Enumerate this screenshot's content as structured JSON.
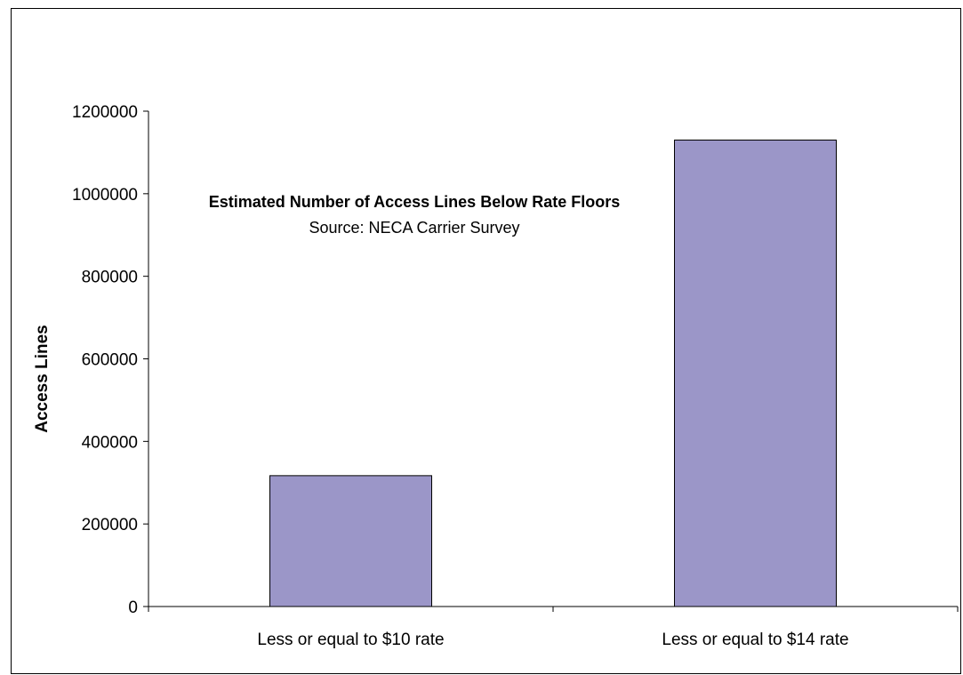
{
  "chart_data": {
    "type": "bar",
    "title": "Estimated Number of Access Lines Below Rate Floors",
    "subtitle": "Source: NECA Carrier Survey",
    "xlabel": "",
    "ylabel": "Access Lines",
    "categories": [
      "Less or equal to $10 rate",
      "Less or equal to $14 rate"
    ],
    "values": [
      317000,
      1130000
    ],
    "ylim": [
      0,
      1200000
    ],
    "yticks": [
      "0",
      "200000",
      "400000",
      "600000",
      "800000",
      "1000000",
      "1200000"
    ],
    "grid": false,
    "legend": "none",
    "bar_color": "#9B96C8",
    "bar_edge_color": "#000000"
  }
}
